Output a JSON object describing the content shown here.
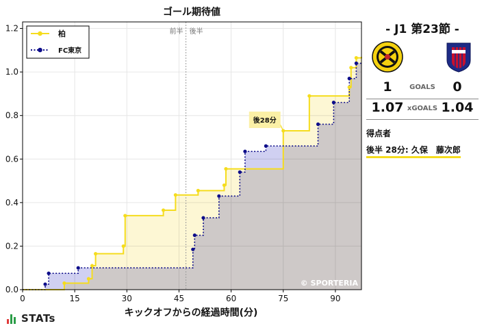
{
  "chart_data": {
    "type": "line",
    "title": "ゴール期待値",
    "xlabel": "キックオフからの経過時間(分)",
    "ylabel": "",
    "xlim": [
      0,
      97.5
    ],
    "ylim": [
      0,
      1.23
    ],
    "xticks": [
      0,
      15,
      30,
      45,
      60,
      75,
      90
    ],
    "yticks": [
      0.0,
      0.2,
      0.4,
      0.6,
      0.8,
      1.0,
      1.2
    ],
    "half_line_x": 47,
    "half_labels": [
      "前半",
      "後半"
    ],
    "grid": true,
    "legend_position": "top-left",
    "watermark": "© SPORTERIA",
    "goal_annotation": {
      "label": "後28分",
      "x": 75,
      "y": 0.73,
      "series": "柏"
    },
    "series": [
      {
        "name": "柏",
        "color": "#f5dc1d",
        "fill": "#fdf6cd",
        "style": "solid",
        "points": [
          [
            0,
            0
          ],
          [
            12,
            0.03
          ],
          [
            19,
            0.05
          ],
          [
            20,
            0.11
          ],
          [
            21,
            0.165
          ],
          [
            29,
            0.2
          ],
          [
            29.5,
            0.34
          ],
          [
            40.5,
            0.365
          ],
          [
            44,
            0.435
          ],
          [
            50.5,
            0.455
          ],
          [
            58,
            0.48
          ],
          [
            58.5,
            0.555
          ],
          [
            75,
            0.73
          ],
          [
            82.5,
            0.89
          ],
          [
            94,
            0.93
          ],
          [
            94.5,
            1.02
          ],
          [
            96,
            1.065
          ],
          [
            97.5,
            1.07
          ]
        ]
      },
      {
        "name": "FC東京",
        "color": "#0d0d8a",
        "fill": "#c8c8ee",
        "style": "dotted",
        "points": [
          [
            0,
            0
          ],
          [
            6.5,
            0.025
          ],
          [
            7.5,
            0.075
          ],
          [
            16,
            0.1
          ],
          [
            49,
            0.185
          ],
          [
            49.5,
            0.25
          ],
          [
            52,
            0.33
          ],
          [
            56.5,
            0.43
          ],
          [
            62.5,
            0.54
          ],
          [
            64,
            0.635
          ],
          [
            70,
            0.66
          ],
          [
            85,
            0.76
          ],
          [
            89.5,
            0.86
          ],
          [
            94,
            0.97
          ],
          [
            96,
            1.04
          ],
          [
            97.5,
            1.04
          ]
        ]
      }
    ]
  },
  "match": {
    "title": "-  J1 第23節  -",
    "home_goals": "1",
    "away_goals": "0",
    "goals_label": "GOALS",
    "home_xg": "1.07",
    "away_xg": "1.04",
    "xg_label": "xGOALS",
    "scorers_title": "得点者",
    "scorers": [
      "後半 28分: 久保　藤次郎"
    ],
    "home_logo_text": "KASHIWA REYSOL",
    "away_logo_text": "F.C. TOKYO"
  },
  "brand": {
    "name": "STATs",
    "bar_colors": [
      "#e03a3a",
      "#2a9d47",
      "#2a9d47"
    ]
  }
}
